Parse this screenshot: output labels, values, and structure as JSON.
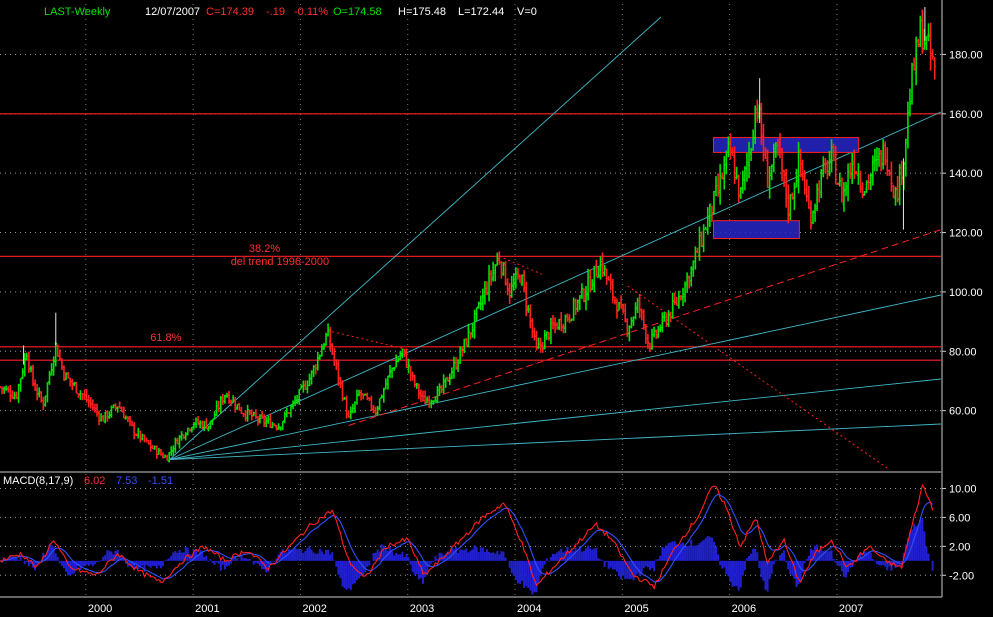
{
  "header": {
    "symbol": "LAST-Weekly",
    "date": "12/07/2007",
    "close": "C=174.39",
    "change": "-.19",
    "change_pct": "-0.11%",
    "open": "O=174.58",
    "high": "H=175.48",
    "low": "L=172.44",
    "volume": "V=0"
  },
  "colors": {
    "background": "#000000",
    "up_bar": "#00e000",
    "down_bar": "#ff2020",
    "fan_lines": "#3fb8c8",
    "horizontal_lines": "#ff2020",
    "zones": "#2626c8",
    "macd_line": "#ff2020",
    "signal_line": "#3050ff",
    "histogram": "#2020d0"
  },
  "chart_data": [
    {
      "type": "line",
      "subtype": "ohlc",
      "ylim": [
        40,
        197
      ],
      "y_ticks": [
        60,
        80,
        100,
        120,
        140,
        160,
        180
      ],
      "y_tick_labels": [
        "60.00",
        "80.00",
        "100.00",
        "120.00",
        "140.00",
        "160.00",
        "180.00"
      ],
      "x_range": [
        1999.2,
        2007.97
      ],
      "x_ticks": [
        2000,
        2001,
        2002,
        2003,
        2004,
        2005,
        2006,
        2007
      ],
      "x_tick_labels": [
        "2000",
        "2001",
        "2002",
        "2003",
        "2004",
        "2005",
        "2006",
        "2007"
      ],
      "grid": true,
      "price_path": [
        [
          1999.2,
          68
        ],
        [
          1999.35,
          65
        ],
        [
          1999.45,
          80
        ],
        [
          1999.5,
          70
        ],
        [
          1999.6,
          62
        ],
        [
          1999.72,
          82
        ],
        [
          1999.8,
          72
        ],
        [
          1999.9,
          68
        ],
        [
          2000.05,
          62
        ],
        [
          2000.15,
          57
        ],
        [
          2000.3,
          62
        ],
        [
          2000.45,
          53
        ],
        [
          2000.6,
          48
        ],
        [
          2000.75,
          44
        ],
        [
          2000.85,
          50
        ],
        [
          2001.0,
          56
        ],
        [
          2001.15,
          55
        ],
        [
          2001.3,
          66
        ],
        [
          2001.45,
          60
        ],
        [
          2001.6,
          57
        ],
        [
          2001.8,
          55
        ],
        [
          2001.95,
          63
        ],
        [
          2002.1,
          72
        ],
        [
          2002.25,
          86
        ],
        [
          2002.35,
          72
        ],
        [
          2002.45,
          57
        ],
        [
          2002.55,
          66
        ],
        [
          2002.7,
          60
        ],
        [
          2002.85,
          74
        ],
        [
          2002.95,
          80
        ],
        [
          2003.05,
          70
        ],
        [
          2003.15,
          63
        ],
        [
          2003.3,
          66
        ],
        [
          2003.45,
          76
        ],
        [
          2003.6,
          88
        ],
        [
          2003.75,
          103
        ],
        [
          2003.85,
          112
        ],
        [
          2003.95,
          100
        ],
        [
          2004.05,
          106
        ],
        [
          2004.2,
          80
        ],
        [
          2004.35,
          88
        ],
        [
          2004.5,
          92
        ],
        [
          2004.65,
          100
        ],
        [
          2004.8,
          110
        ],
        [
          2004.9,
          100
        ],
        [
          2005.05,
          88
        ],
        [
          2005.15,
          96
        ],
        [
          2005.25,
          82
        ],
        [
          2005.35,
          88
        ],
        [
          2005.5,
          96
        ],
        [
          2005.65,
          108
        ],
        [
          2005.8,
          125
        ],
        [
          2005.9,
          135
        ],
        [
          2006.0,
          148
        ],
        [
          2006.1,
          132
        ],
        [
          2006.2,
          150
        ],
        [
          2006.25,
          165
        ],
        [
          2006.35,
          138
        ],
        [
          2006.45,
          148
        ],
        [
          2006.55,
          128
        ],
        [
          2006.65,
          145
        ],
        [
          2006.75,
          125
        ],
        [
          2006.85,
          138
        ],
        [
          2006.95,
          145
        ],
        [
          2007.05,
          132
        ],
        [
          2007.15,
          145
        ],
        [
          2007.25,
          135
        ],
        [
          2007.35,
          142
        ],
        [
          2007.45,
          148
        ],
        [
          2007.55,
          132
        ],
        [
          2007.62,
          145
        ],
        [
          2007.7,
          172
        ],
        [
          2007.78,
          188
        ],
        [
          2007.85,
          182
        ],
        [
          2007.92,
          174
        ]
      ],
      "horizontal_levels": [
        160,
        112,
        81.5,
        77
      ],
      "support_zones": [
        {
          "x0": 2005.85,
          "x1": 2007.2,
          "y0": 147,
          "y1": 152
        },
        {
          "x0": 2005.85,
          "x1": 2006.65,
          "y0": 118,
          "y1": 124
        }
      ],
      "annotations": [
        {
          "text": "38.2%",
          "x": 2001.52,
          "y": 113.5
        },
        {
          "text": "del trend 1996-2000",
          "x": 2001.35,
          "y": 109
        },
        {
          "text": "61.8%",
          "x": 2000.6,
          "y": 83.5
        }
      ]
    },
    {
      "type": "line",
      "title": "MACD(8,17,9)",
      "values_text": [
        "6.02",
        "7.53",
        "-1.51"
      ],
      "ylim": [
        -5,
        12
      ],
      "y_ticks": [
        -2,
        2,
        6,
        10
      ],
      "y_tick_labels": [
        "-2.00",
        "2.00",
        "6.00",
        "10.00"
      ],
      "macd_path": [
        [
          1999.2,
          0
        ],
        [
          1999.4,
          1
        ],
        [
          1999.55,
          -1
        ],
        [
          1999.7,
          3
        ],
        [
          1999.85,
          -1
        ],
        [
          2000.1,
          -2
        ],
        [
          2000.3,
          1
        ],
        [
          2000.5,
          -1.5
        ],
        [
          2000.7,
          -3
        ],
        [
          2000.9,
          0
        ],
        [
          2001.1,
          2
        ],
        [
          2001.3,
          0
        ],
        [
          2001.5,
          1.5
        ],
        [
          2001.7,
          -1
        ],
        [
          2001.9,
          2
        ],
        [
          2002.1,
          5
        ],
        [
          2002.3,
          7
        ],
        [
          2002.45,
          0
        ],
        [
          2002.6,
          -2.5
        ],
        [
          2002.8,
          2
        ],
        [
          2003.0,
          3
        ],
        [
          2003.15,
          -2
        ],
        [
          2003.3,
          0
        ],
        [
          2003.5,
          3
        ],
        [
          2003.7,
          6
        ],
        [
          2003.9,
          8
        ],
        [
          2004.05,
          3
        ],
        [
          2004.2,
          -3.5
        ],
        [
          2004.35,
          -1
        ],
        [
          2004.55,
          2
        ],
        [
          2004.75,
          5
        ],
        [
          2004.9,
          3
        ],
        [
          2005.1,
          -2
        ],
        [
          2005.3,
          -3.5
        ],
        [
          2005.5,
          2
        ],
        [
          2005.7,
          6
        ],
        [
          2005.85,
          10.5
        ],
        [
          2005.95,
          8
        ],
        [
          2006.1,
          2
        ],
        [
          2006.25,
          6
        ],
        [
          2006.35,
          -0.5
        ],
        [
          2006.5,
          3
        ],
        [
          2006.65,
          -3
        ],
        [
          2006.8,
          1
        ],
        [
          2006.95,
          3
        ],
        [
          2007.1,
          -1
        ],
        [
          2007.3,
          2
        ],
        [
          2007.45,
          0
        ],
        [
          2007.6,
          -1
        ],
        [
          2007.72,
          6
        ],
        [
          2007.8,
          10.5
        ],
        [
          2007.9,
          7
        ]
      ]
    }
  ]
}
